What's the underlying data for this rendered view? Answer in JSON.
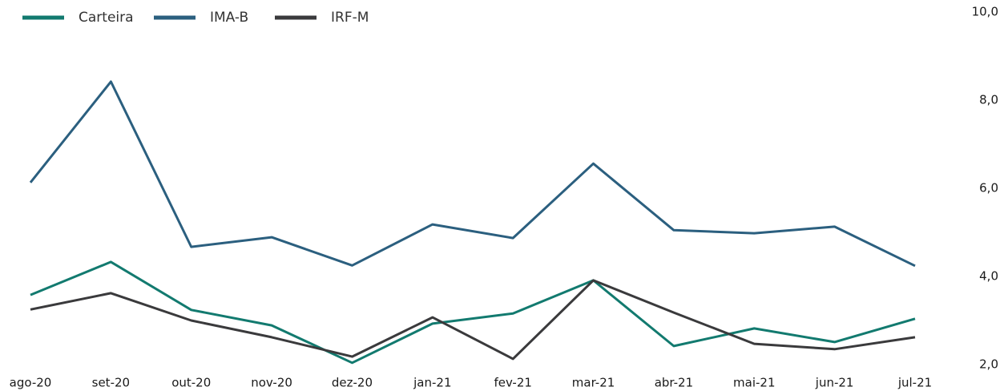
{
  "chart_data": {
    "type": "line",
    "categories": [
      "ago-20",
      "set-20",
      "out-20",
      "nov-20",
      "dez-20",
      "jan-21",
      "fev-21",
      "mar-21",
      "abr-21",
      "mai-21",
      "jun-21",
      "jul-21"
    ],
    "series": [
      {
        "name": "Carteira",
        "color": "#127a6f",
        "values": [
          3.58,
          4.33,
          3.24,
          2.89,
          2.04,
          2.93,
          3.16,
          3.91,
          2.42,
          2.82,
          2.51,
          3.04
        ]
      },
      {
        "name": "IMA-B",
        "color": "#2b5f7f",
        "values": [
          6.13,
          8.42,
          4.67,
          4.89,
          4.25,
          5.18,
          4.87,
          6.56,
          5.05,
          4.98,
          5.13,
          4.24
        ]
      },
      {
        "name": "IRF-M",
        "color": "#3a3a3c",
        "values": [
          3.25,
          3.62,
          3.0,
          2.62,
          2.18,
          3.07,
          2.13,
          3.91,
          3.18,
          2.47,
          2.35,
          2.62
        ]
      }
    ],
    "ylim": [
      2,
      10
    ],
    "yticks": [
      {
        "value": 2,
        "label": "2,0"
      },
      {
        "value": 4,
        "label": "4,0"
      },
      {
        "value": 6,
        "label": "6,0"
      },
      {
        "value": 8,
        "label": "8,0"
      },
      {
        "value": 10,
        "label": "10,0"
      }
    ],
    "y_axis_side": "right",
    "legend": "top-left",
    "grid": false
  }
}
